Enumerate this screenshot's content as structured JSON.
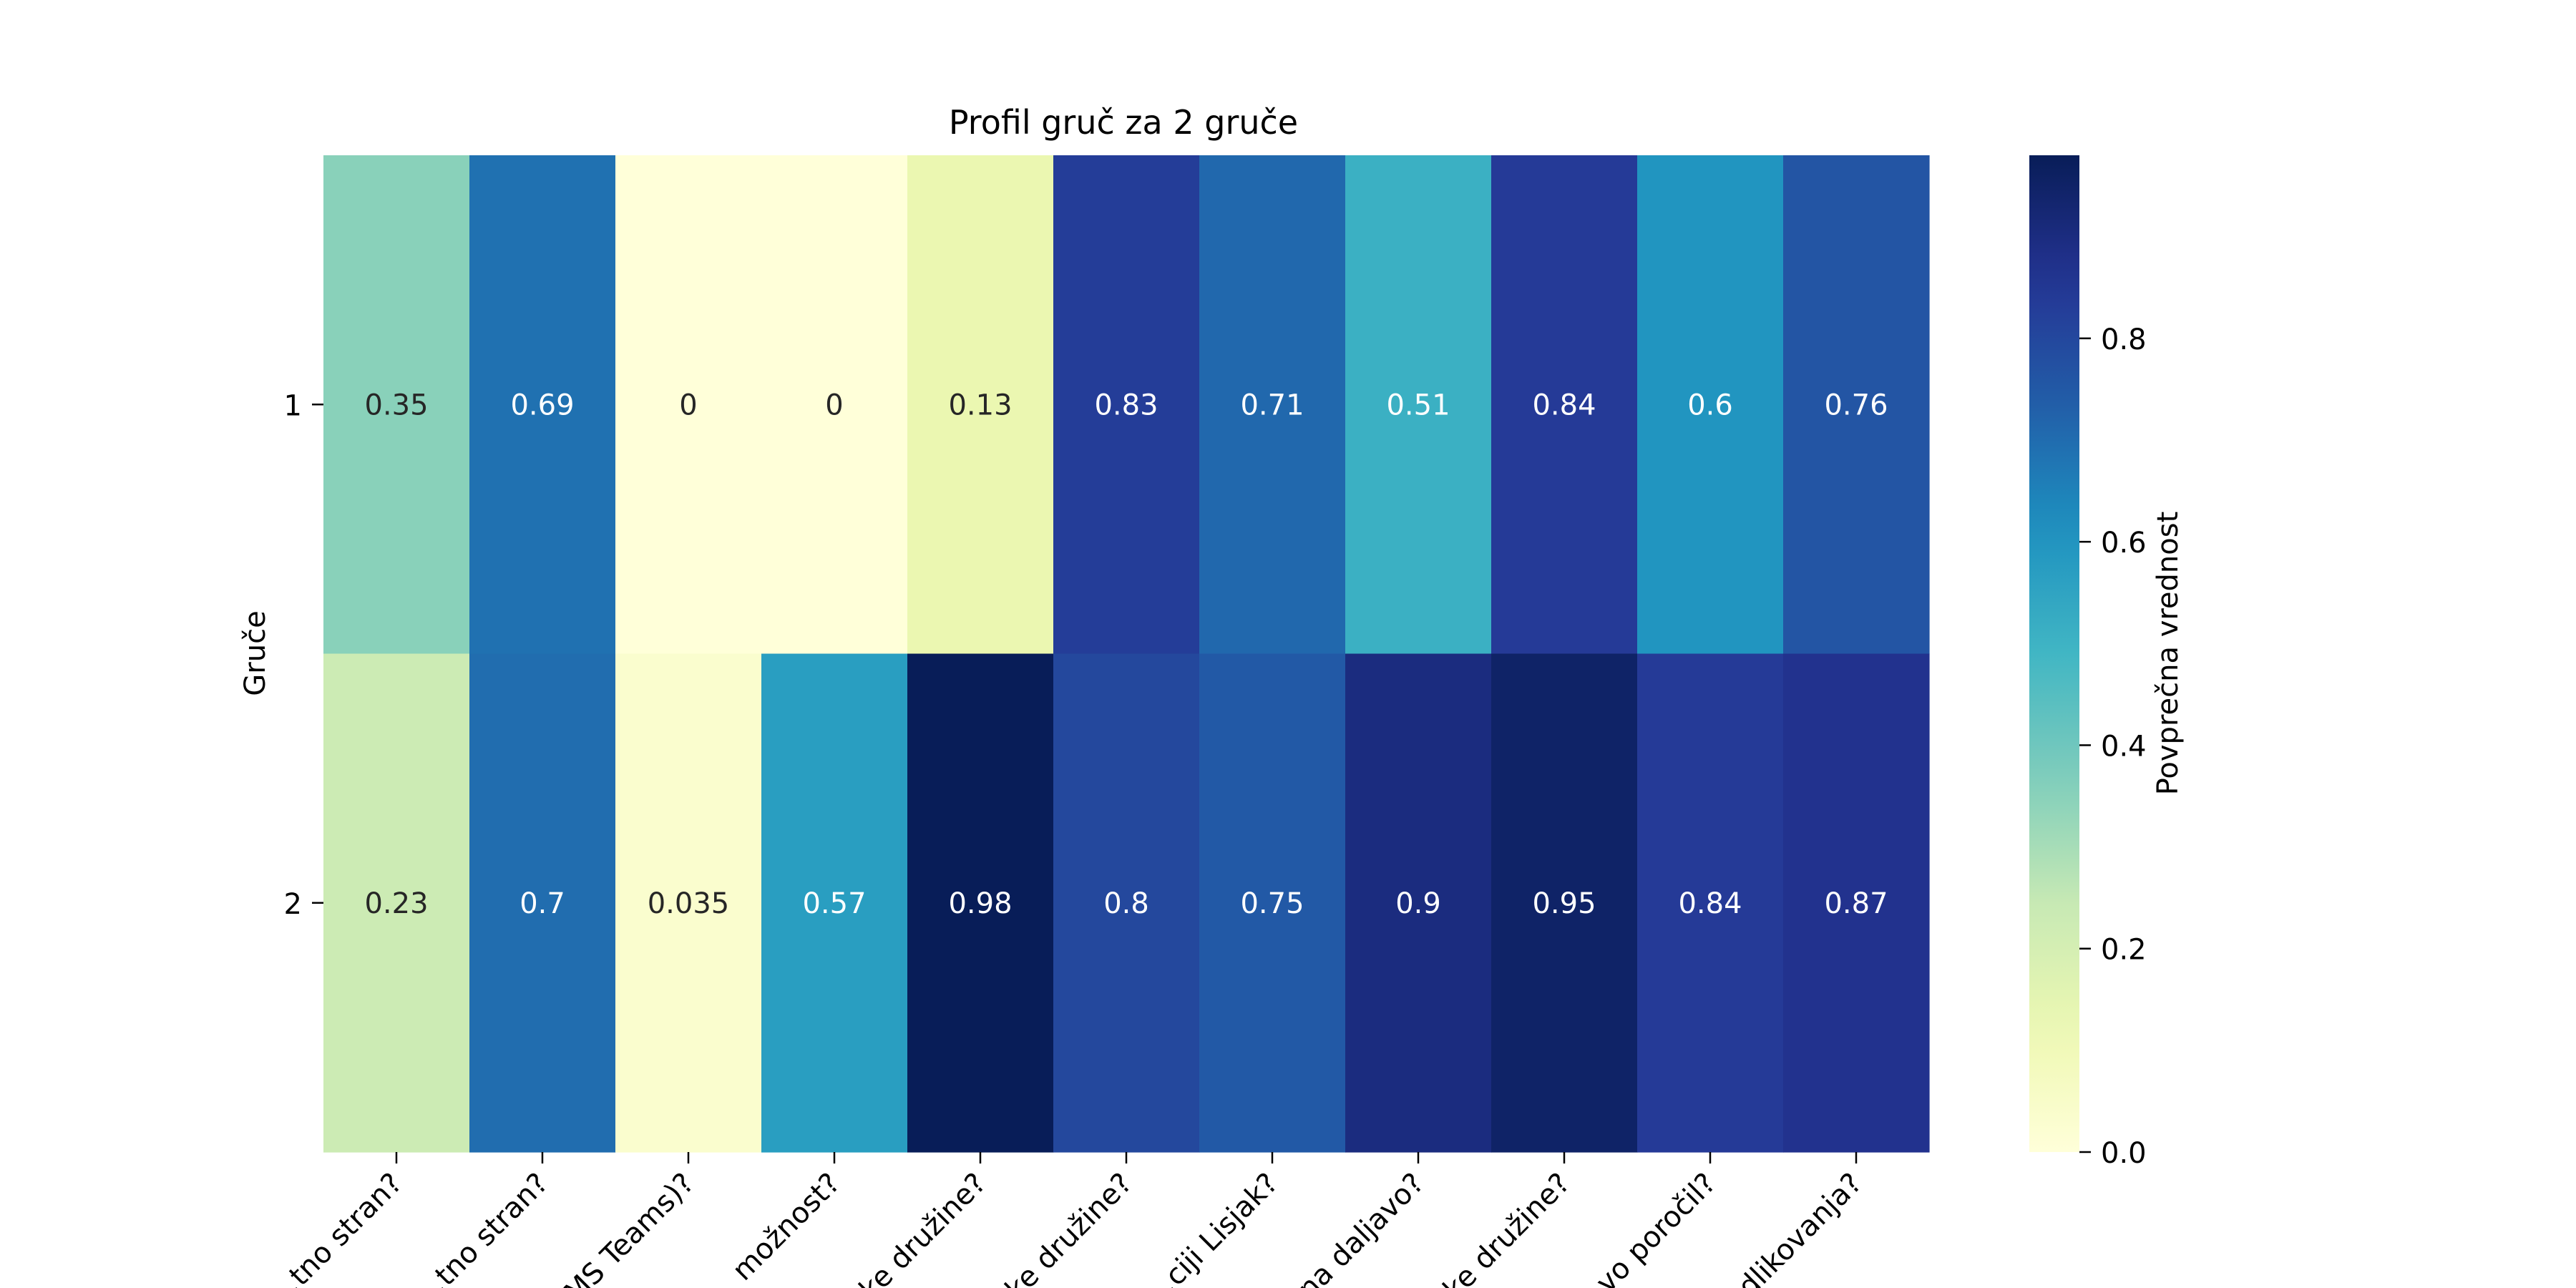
{
  "chart_data": {
    "type": "heatmap",
    "title": "Profil gruč za 2 gruče",
    "ylabel": "Gruče",
    "xlabel": "",
    "rows": [
      "1",
      "2"
    ],
    "columns": [
      "…tno stran?",
      "…tno stran?",
      "…MS Teams)?",
      "… možnost?",
      "…ke družine?",
      "…ke družine?",
      "…ciji Lisjak?",
      "…na daljavo?",
      "…ke družine?",
      "…vo poročil?",
      "…dlikovanja?"
    ],
    "values": [
      [
        0.35,
        0.69,
        0,
        0,
        0.13,
        0.83,
        0.71,
        0.51,
        0.84,
        0.6,
        0.76
      ],
      [
        0.23,
        0.7,
        0.035,
        0.57,
        0.98,
        0.8,
        0.75,
        0.9,
        0.95,
        0.84,
        0.87
      ]
    ],
    "cell_labels": [
      [
        "0.35",
        "0.69",
        "0",
        "0",
        "0.13",
        "0.83",
        "0.71",
        "0.51",
        "0.84",
        "0.6",
        "0.76"
      ],
      [
        "0.23",
        "0.7",
        "0.035",
        "0.57",
        "0.98",
        "0.8",
        "0.75",
        "0.9",
        "0.95",
        "0.84",
        "0.87"
      ]
    ],
    "colormap": "YlGnBu",
    "vmin": 0,
    "vmax": 0.98,
    "colorbar": {
      "label": "Povprečna vrednost",
      "ticks": [
        0.0,
        0.2,
        0.4,
        0.6,
        0.8
      ],
      "tick_labels": [
        "0.0",
        "0.2",
        "0.4",
        "0.6",
        "0.8"
      ]
    }
  }
}
